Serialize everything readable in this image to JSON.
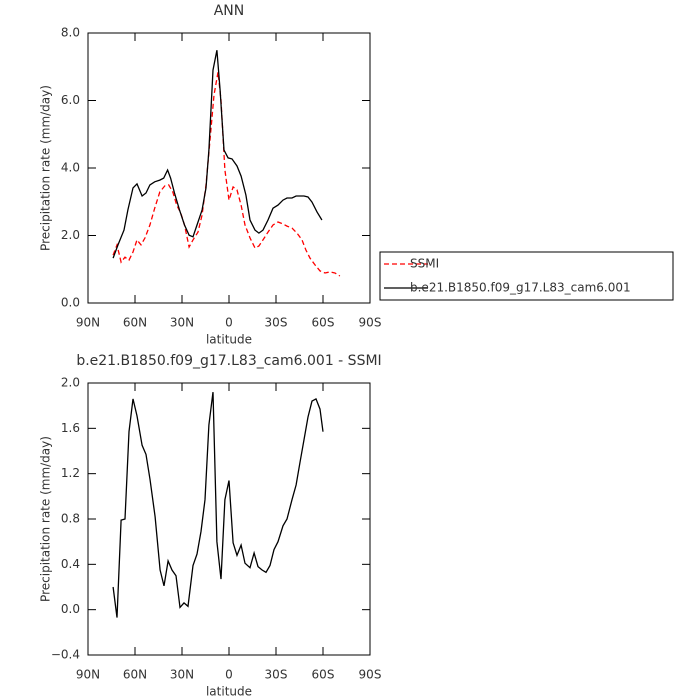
{
  "chart_data": [
    {
      "type": "line",
      "title": "ANN",
      "xlabel": "latitude",
      "ylabel": "Precipitation rate (mm/day)",
      "xlim": [
        90,
        -90
      ],
      "ylim": [
        0,
        8
      ],
      "xticks": [
        {
          "value": 90,
          "label": "90N"
        },
        {
          "value": 60,
          "label": "60N"
        },
        {
          "value": 30,
          "label": "30N"
        },
        0,
        {
          "value": -30,
          "label": "30S"
        },
        {
          "value": -60,
          "label": "60S"
        },
        {
          "value": -90,
          "label": "90S"
        }
      ],
      "yticks": [
        {
          "value": 0,
          "label": "0.0"
        },
        {
          "value": 2,
          "label": "2.0"
        },
        {
          "value": 4,
          "label": "4.0"
        },
        {
          "value": 6,
          "label": "6.0"
        },
        {
          "value": 8,
          "label": "8.0"
        }
      ],
      "legend": "right",
      "series": [
        {
          "name": "SSMI",
          "color": "#ff0000",
          "line_style": "dashed",
          "x": [
            74.0,
            71.5,
            68.9,
            66.4,
            63.8,
            61.3,
            58.7,
            56.2,
            53.6,
            50.5,
            47.4,
            44.2,
            41.0,
            38.5,
            35.9,
            33.4,
            30.8,
            28.4,
            25.5,
            23.0,
            19.8,
            17.2,
            14.7,
            12.1,
            9.6,
            7.0,
            5.1,
            2.6,
            0,
            -2.6,
            -5.1,
            -7.7,
            -10.2,
            -13.4,
            -16.6,
            -19.1,
            -21.7,
            -24.9,
            -28.1,
            -31.3,
            -34.5,
            -37.0,
            -40.2,
            -43.4,
            -46.6,
            -49.1,
            -51.7,
            -54.9,
            -58.1,
            -61.3,
            -64.5,
            -67.6,
            -70.8
          ],
          "values": [
            1.42,
            1.72,
            1.21,
            1.36,
            1.27,
            1.51,
            1.87,
            1.72,
            1.93,
            2.31,
            2.81,
            3.29,
            3.47,
            3.5,
            3.29,
            2.9,
            2.67,
            2.31,
            1.66,
            1.87,
            2.1,
            2.61,
            3.5,
            4.83,
            6.16,
            6.84,
            6.01,
            3.94,
            3.05,
            3.44,
            3.35,
            2.9,
            2.31,
            1.93,
            1.63,
            1.69,
            1.87,
            2.1,
            2.31,
            2.4,
            2.34,
            2.28,
            2.22,
            2.07,
            1.87,
            1.57,
            1.33,
            1.13,
            0.95,
            0.89,
            0.92,
            0.89,
            0.8
          ]
        },
        {
          "name": "b.e21.B1850.f09_g17.L83_cam6.001",
          "color": "#000000",
          "line_style": "solid",
          "x": [
            74.0,
            70.8,
            67.0,
            64.5,
            61.3,
            58.7,
            55.5,
            53.0,
            50.5,
            47.4,
            44.2,
            41.7,
            39.2,
            37.3,
            34.8,
            31.6,
            28.4,
            25.5,
            23.0,
            20.4,
            17.2,
            14.7,
            12.8,
            10.2,
            7.7,
            5.7,
            3.2,
            0.6,
            -1.9,
            -5.1,
            -7.7,
            -10.8,
            -13.4,
            -16.6,
            -19.1,
            -21.7,
            -24.9,
            -28.1,
            -31.3,
            -34.5,
            -37.0,
            -40.2,
            -42.8,
            -45.3,
            -47.9,
            -50.4,
            -53.0,
            -56.2,
            -59.3
          ],
          "values": [
            1.33,
            1.73,
            2.16,
            2.76,
            3.41,
            3.53,
            3.17,
            3.26,
            3.5,
            3.59,
            3.64,
            3.7,
            3.94,
            3.7,
            3.26,
            2.76,
            2.31,
            2.01,
            1.96,
            2.31,
            2.76,
            3.41,
            4.53,
            6.9,
            7.49,
            6.31,
            4.53,
            4.3,
            4.27,
            4.06,
            3.76,
            3.2,
            2.46,
            2.16,
            2.07,
            2.16,
            2.46,
            2.81,
            2.9,
            3.05,
            3.11,
            3.11,
            3.17,
            3.17,
            3.17,
            3.14,
            2.99,
            2.7,
            2.46
          ]
        }
      ]
    },
    {
      "type": "line",
      "title": "b.e21.B1850.f09_g17.L83_cam6.001 - SSMI",
      "xlabel": "latitude",
      "ylabel": "Precipitation rate (mm/day)",
      "xlim": [
        90,
        -90
      ],
      "ylim": [
        -0.4,
        2.0
      ],
      "xticks": [
        {
          "value": 90,
          "label": "90N"
        },
        {
          "value": 60,
          "label": "60N"
        },
        {
          "value": 30,
          "label": "30N"
        },
        0,
        {
          "value": -30,
          "label": "30S"
        },
        {
          "value": -60,
          "label": "60S"
        },
        {
          "value": -90,
          "label": "90S"
        }
      ],
      "yticks": [
        {
          "value": -0.4,
          "label": "−0.4"
        },
        {
          "value": 0,
          "label": "0.0"
        },
        0.4,
        0.8,
        1.2,
        1.6,
        {
          "value": 2.0,
          "label": "2.0"
        }
      ],
      "series": [
        {
          "color": "#000000",
          "line_style": "solid",
          "x": [
            74.0,
            71.5,
            68.9,
            66.4,
            63.8,
            61.3,
            58.7,
            55.5,
            53.0,
            50.4,
            47.2,
            44.0,
            41.5,
            38.9,
            36.4,
            33.8,
            31.3,
            28.7,
            26.2,
            23.0,
            20.4,
            17.9,
            15.3,
            12.8,
            10.2,
            7.7,
            5.1,
            2.6,
            0,
            -2.6,
            -5.1,
            -7.7,
            -10.2,
            -13.4,
            -16.0,
            -18.5,
            -21.1,
            -23.6,
            -26.2,
            -28.7,
            -31.3,
            -34.5,
            -37.0,
            -40.2,
            -42.8,
            -45.3,
            -47.9,
            -50.4,
            -53.0,
            -55.5,
            -58.1,
            -60.0
          ],
          "values": [
            0.2,
            -0.07,
            0.79,
            0.8,
            1.57,
            1.86,
            1.71,
            1.45,
            1.37,
            1.15,
            0.82,
            0.35,
            0.21,
            0.43,
            0.35,
            0.3,
            0.02,
            0.06,
            0.03,
            0.39,
            0.49,
            0.69,
            0.97,
            1.63,
            1.92,
            0.6,
            0.27,
            0.97,
            1.14,
            0.59,
            0.48,
            0.57,
            0.41,
            0.37,
            0.5,
            0.38,
            0.35,
            0.33,
            0.39,
            0.53,
            0.6,
            0.74,
            0.8,
            0.97,
            1.1,
            1.3,
            1.5,
            1.7,
            1.84,
            1.86,
            1.77,
            1.57
          ]
        }
      ]
    }
  ]
}
